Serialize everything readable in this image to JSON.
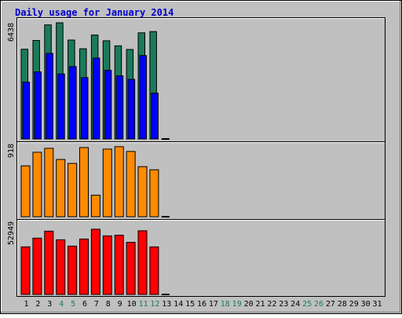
{
  "chart_data": {
    "type": "bar",
    "title": "Daily usage for January 2014",
    "x": [
      "1",
      "2",
      "3",
      "4",
      "5",
      "6",
      "7",
      "8",
      "9",
      "10",
      "11",
      "12",
      "13",
      "14",
      "15",
      "16",
      "17",
      "18",
      "19",
      "20",
      "21",
      "22",
      "23",
      "24",
      "25",
      "26",
      "27",
      "28",
      "29",
      "30",
      "31"
    ],
    "weekend_days": [
      "4",
      "5",
      "11",
      "12",
      "18",
      "19",
      "25",
      "26"
    ],
    "panels": [
      {
        "name": "top",
        "axis_label": "6438",
        "max": 6438,
        "series": [
          {
            "color": "#1b7a5a",
            "values": [
              4970,
              5460,
              6320,
              6438,
              5480,
              5000,
              5760,
              5440,
              5160,
              4960,
              5880,
              5950,
              0,
              0,
              0,
              0,
              0,
              0,
              0,
              0,
              0,
              0,
              0,
              0,
              0,
              0,
              0,
              0,
              0,
              0,
              0
            ]
          },
          {
            "color": "#0000ff",
            "values": [
              3150,
              3720,
              4740,
              3600,
              4010,
              3400,
              4480,
              3800,
              3500,
              3300,
              4620,
              2540,
              0,
              0,
              0,
              0,
              0,
              0,
              0,
              0,
              0,
              0,
              0,
              0,
              0,
              0,
              0,
              0,
              0,
              0,
              0
            ]
          }
        ]
      },
      {
        "name": "middle",
        "axis_label": "918",
        "max": 918,
        "series": [
          {
            "color": "#ff8a00",
            "values": [
              640,
              810,
              860,
              720,
              670,
              870,
              270,
              850,
              880,
              820,
              630,
              590,
              0,
              0,
              0,
              0,
              0,
              0,
              0,
              0,
              0,
              0,
              0,
              0,
              0,
              0,
              0,
              0,
              0,
              0,
              0
            ]
          }
        ]
      },
      {
        "name": "bottom",
        "axis_label": "52949",
        "max": 52949,
        "series": [
          {
            "color": "#ff0000",
            "values": [
              34500,
              40800,
              45900,
              39600,
              35100,
              40200,
              47300,
              42500,
              43000,
              37800,
              46200,
              34500,
              0,
              0,
              0,
              0,
              0,
              0,
              0,
              0,
              0,
              0,
              0,
              0,
              0,
              0,
              0,
              0,
              0,
              0,
              0
            ]
          }
        ]
      }
    ],
    "colors": {
      "background": "#c0c0c0",
      "title": "#0000cc",
      "weekday_label": "#000000",
      "weekend_label": "#1b7a5a"
    }
  }
}
